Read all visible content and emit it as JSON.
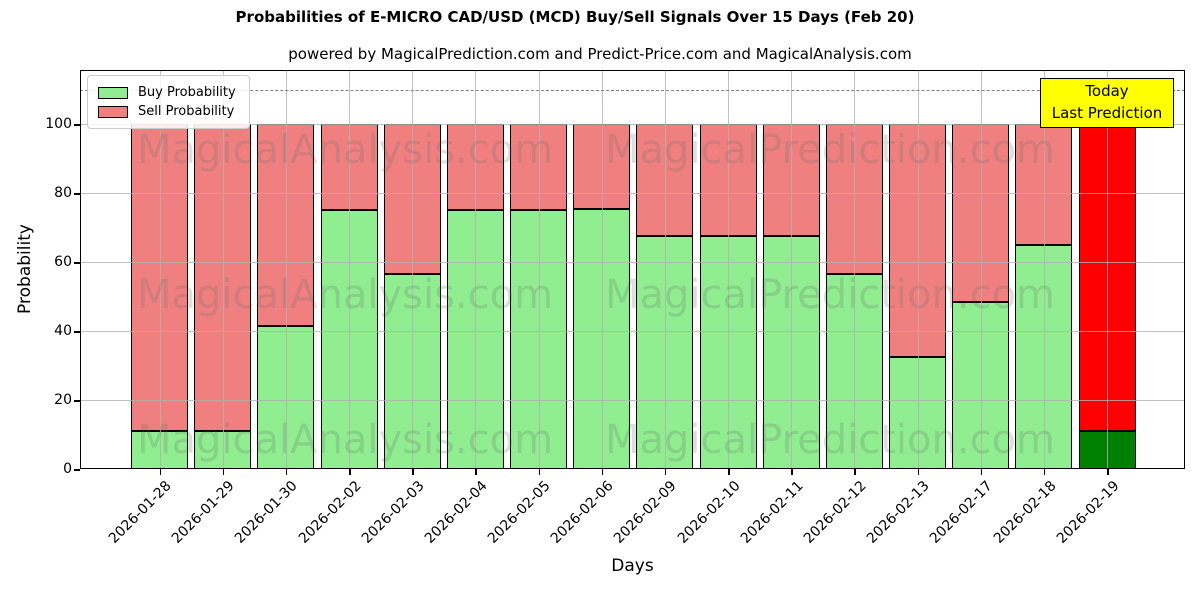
{
  "chart_data": {
    "type": "bar",
    "stacked": true,
    "title": "Probabilities of E-MICRO CAD/USD (MCD) Buy/Sell Signals Over 15 Days (Feb 20)",
    "subtitle": "powered by MagicalPrediction.com and Predict-Price.com and MagicalAnalysis.com",
    "xlabel": "Days",
    "ylabel": "Probability",
    "ylim": [
      0,
      115.7
    ],
    "yticks": [
      0,
      20,
      40,
      60,
      80,
      100
    ],
    "grid": true,
    "dashed_line_y": 110,
    "legend_position": "upper left",
    "categories": [
      "2026-01-28",
      "2026-01-29",
      "2026-01-30",
      "2026-02-02",
      "2026-02-03",
      "2026-02-04",
      "2026-02-05",
      "2026-02-06",
      "2026-02-09",
      "2026-02-10",
      "2026-02-11",
      "2026-02-12",
      "2026-02-13",
      "2026-02-17",
      "2026-02-18",
      "2026-02-19"
    ],
    "series": [
      {
        "name": "Buy Probability",
        "color": "#90EE90",
        "values": [
          11,
          11,
          41.5,
          75,
          56.5,
          75,
          75,
          75.5,
          67.5,
          67.5,
          67.5,
          56.5,
          32.5,
          48.5,
          65,
          11
        ]
      },
      {
        "name": "Sell Probability",
        "color": "#F08080",
        "values": [
          89,
          89,
          58.5,
          25,
          43.5,
          25,
          25,
          24.5,
          32.5,
          32.5,
          32.5,
          43.5,
          67.5,
          51.5,
          35,
          89
        ]
      }
    ],
    "today_bar": {
      "index": 15,
      "buy_color": "#008000",
      "sell_color": "#FF0000"
    },
    "annotation": {
      "line1": "Today",
      "line2": "Last Prediction",
      "bg_color": "#FFFF00"
    },
    "watermark_left": "MagicalAnalysis.com",
    "watermark_right": "MagicalPrediction.com"
  }
}
